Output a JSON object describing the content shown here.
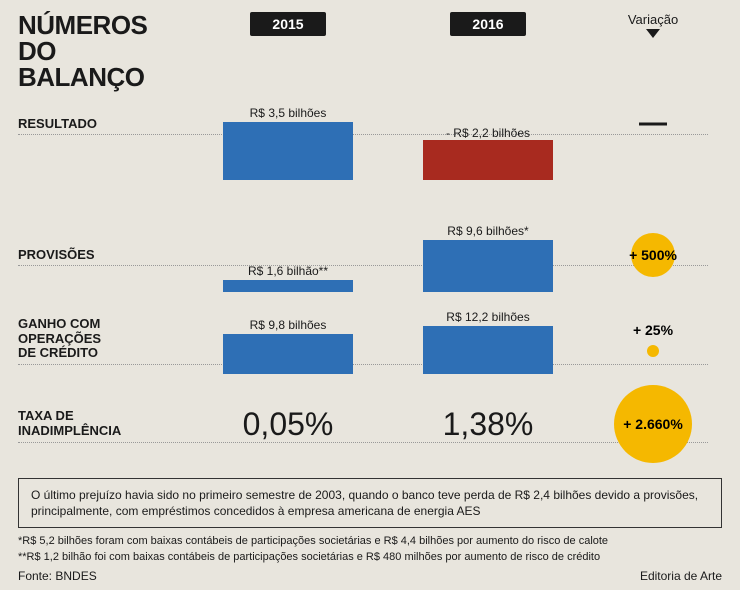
{
  "title_line1": "NÚMEROS",
  "title_line2": "DO BALANÇO",
  "years": {
    "y2015": "2015",
    "y2016": "2016"
  },
  "variacao_header": "Variação",
  "colors": {
    "blue": "#2e6fb5",
    "red": "#a82a1f",
    "yellow": "#f5b800",
    "black": "#1a1a1a",
    "bg": "#e8e5dd"
  },
  "rows": {
    "resultado": {
      "label": "RESULTADO",
      "v2015": {
        "label": "R$ 3,5 bilhões",
        "value": 3.5,
        "height": 58,
        "color": "#2e6fb5",
        "direction": "up"
      },
      "v2016": {
        "label": "- R$ 2,2 bilhões",
        "value": -2.2,
        "height": 40,
        "color": "#a82a1f",
        "direction": "down"
      },
      "variacao": {
        "type": "dash"
      }
    },
    "provisoes": {
      "label": "PROVISÕES",
      "v2015": {
        "label": "R$ 1,6 bilhão**",
        "value": 1.6,
        "height": 12,
        "color": "#2e6fb5"
      },
      "v2016": {
        "label": "R$ 9,6 bilhões*",
        "value": 9.6,
        "height": 52,
        "color": "#2e6fb5"
      },
      "variacao": {
        "text": "+ 500%",
        "circle_d": 44,
        "text_inside": false
      }
    },
    "ganho": {
      "label_l1": "GANHO COM",
      "label_l2": "OPERAÇÕES",
      "label_l3": "DE CRÉDITO",
      "v2015": {
        "label": "R$ 9,8 bilhões",
        "value": 9.8,
        "height": 40,
        "color": "#2e6fb5"
      },
      "v2016": {
        "label": "R$ 12,2 bilhões",
        "value": 12.2,
        "height": 48,
        "color": "#2e6fb5"
      },
      "variacao": {
        "text": "+ 25%",
        "circle_d": 12,
        "text_inside": false
      }
    },
    "taxa": {
      "label_l1": "TAXA DE",
      "label_l2": "INADIMPLÊNCIA",
      "v2015": "0,05%",
      "v2016": "1,38%",
      "variacao": {
        "text": "+ 2.660%",
        "circle_d": 78,
        "text_inside": true
      }
    }
  },
  "footnote_box": "O último prejuízo havia sido no primeiro semestre de 2003, quando o banco teve perda de R$ 2,4 bilhões devido a provisões, principalmente, com empréstimos concedidos à empresa americana de energia AES",
  "footnote1": "*R$ 5,2 bilhões foram com baixas contábeis de participações societárias e R$ 4,4 bilhões por aumento do risco de calote",
  "footnote2": "**R$ 1,2 bilhão foi com baixas contábeis de participações societárias e R$ 480 milhões por aumento de risco de crédito",
  "fonte": "Fonte: BNDES",
  "editoria": "Editoria de Arte"
}
